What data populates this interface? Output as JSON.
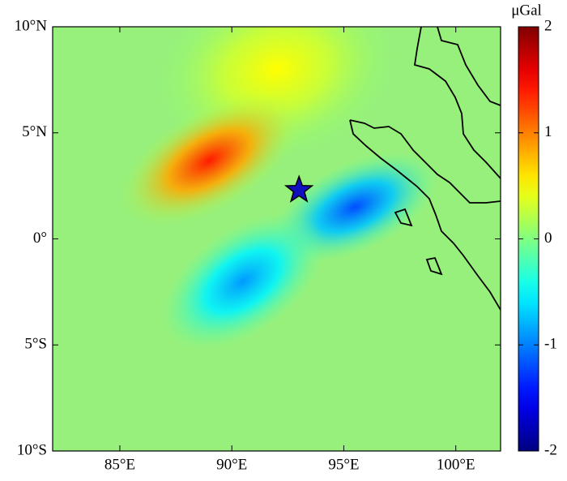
{
  "chart_data": {
    "type": "contour",
    "xlim": [
      82,
      102
    ],
    "ylim": [
      -10,
      10
    ],
    "xticks": [
      {
        "value": 85,
        "label": "85°E"
      },
      {
        "value": 90,
        "label": "90°E"
      },
      {
        "value": 95,
        "label": "95°E"
      },
      {
        "value": 100,
        "label": "100°E"
      }
    ],
    "yticks": [
      {
        "value": 10,
        "label": "10°N"
      },
      {
        "value": 5,
        "label": "5°N"
      },
      {
        "value": 0,
        "label": "0°"
      },
      {
        "value": -5,
        "label": "5°S"
      },
      {
        "value": -10,
        "label": "10°S"
      }
    ],
    "colorbar_title": "μGal",
    "clim": [
      -2,
      2
    ],
    "cticks": [
      2,
      1,
      0,
      -1,
      -2
    ],
    "background_color": "#97f07c",
    "features": [
      {
        "lon": 92,
        "lat": 8,
        "value": 0.5
      },
      {
        "lon": 89,
        "lat": 3.7,
        "value": 1.4
      },
      {
        "lon": 95.5,
        "lat": 1.5,
        "value": -1.2
      },
      {
        "lon": 90.5,
        "lat": -2,
        "value": -0.9
      }
    ],
    "epicenter": {
      "lon": 93,
      "lat": 2.3,
      "color": "#1010c0"
    },
    "grid": false
  }
}
